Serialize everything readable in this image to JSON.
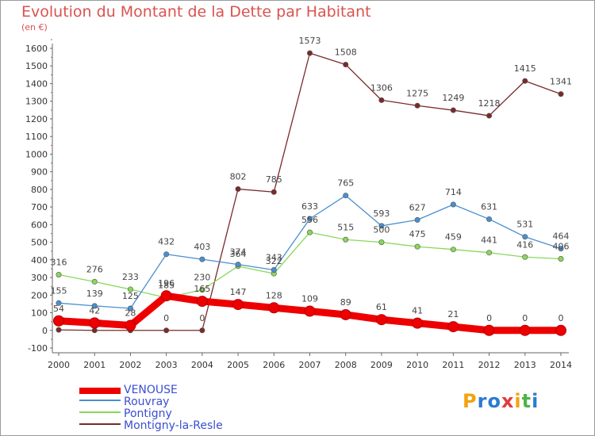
{
  "title": "Evolution du Montant de la Dette par Habitant",
  "unit": "(en €)",
  "logo": "Proxiti",
  "chart_data": {
    "type": "line",
    "x": [
      "2000",
      "2001",
      "2002",
      "2003",
      "2004",
      "2005",
      "2006",
      "2007",
      "2008",
      "2009",
      "2010",
      "2011",
      "2012",
      "2013",
      "2014"
    ],
    "ylim": [
      -100,
      1600
    ],
    "yticks": [
      -100,
      0,
      100,
      200,
      300,
      400,
      500,
      600,
      700,
      800,
      900,
      1000,
      1100,
      1200,
      1300,
      1400,
      1500,
      1600
    ],
    "grid": false,
    "legend_position": "bottom-left",
    "series": [
      {
        "name": "VENOUSE",
        "color": "#ee0000",
        "values": [
          54,
          42,
          28,
          196,
          165,
          147,
          128,
          109,
          89,
          61,
          41,
          21,
          0,
          0,
          0
        ]
      },
      {
        "name": "Rouvray",
        "color": "#4a8fcf",
        "values": [
          155,
          139,
          125,
          432,
          403,
          374,
          343,
          633,
          765,
          593,
          627,
          714,
          631,
          531,
          464
        ]
      },
      {
        "name": "Pontigny",
        "color": "#88d85a",
        "values": [
          316,
          276,
          233,
          185,
          230,
          364,
          322,
          556,
          515,
          500,
          475,
          459,
          441,
          416,
          406
        ]
      },
      {
        "name": "Montigny-la-Resle",
        "color": "#7a2a2a",
        "values": [
          3,
          0,
          0,
          0,
          0,
          802,
          785,
          1573,
          1508,
          1306,
          1275,
          1249,
          1218,
          1415,
          1341
        ],
        "value_labels": [
          "",
          "",
          "",
          "0",
          "0",
          "802",
          "785",
          "1573",
          "1508",
          "1306",
          "1275",
          "1249",
          "1218",
          "1415",
          "1341"
        ]
      }
    ]
  }
}
